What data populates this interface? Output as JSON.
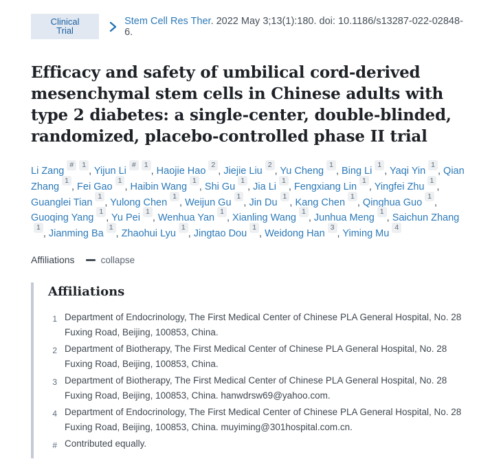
{
  "header": {
    "badge": "Clinical Trial",
    "journal": "Stem Cell Res Ther",
    "citation_rest": ". 2022 May 3;13(1):180. doi: 10.1186/s13287-022-02848-6."
  },
  "title": "Efficacy and safety of umbilical cord-derived mesenchymal stem cells in Chinese adults with type 2 diabetes: a single-center, double-blinded, randomized, placebo-controlled phase II trial",
  "authors": [
    {
      "name": "Li Zang",
      "sups": [
        "#",
        "1"
      ]
    },
    {
      "name": "Yijun Li",
      "sups": [
        "#",
        "1"
      ]
    },
    {
      "name": "Haojie Hao",
      "sups": [
        "2"
      ]
    },
    {
      "name": "Jiejie Liu",
      "sups": [
        "2"
      ]
    },
    {
      "name": "Yu Cheng",
      "sups": [
        "1"
      ]
    },
    {
      "name": "Bing Li",
      "sups": [
        "1"
      ]
    },
    {
      "name": "Yaqi Yin",
      "sups": [
        "1"
      ]
    },
    {
      "name": "Qian Zhang",
      "sups": [
        "1"
      ]
    },
    {
      "name": "Fei Gao",
      "sups": [
        "1"
      ]
    },
    {
      "name": "Haibin Wang",
      "sups": [
        "1"
      ]
    },
    {
      "name": "Shi Gu",
      "sups": [
        "1"
      ]
    },
    {
      "name": "Jia Li",
      "sups": [
        "1"
      ]
    },
    {
      "name": "Fengxiang Lin",
      "sups": [
        "1"
      ]
    },
    {
      "name": "Yingfei Zhu",
      "sups": [
        "1"
      ]
    },
    {
      "name": "Guanglei Tian",
      "sups": [
        "1"
      ]
    },
    {
      "name": "Yulong Chen",
      "sups": [
        "1"
      ]
    },
    {
      "name": "Weijun Gu",
      "sups": [
        "1"
      ]
    },
    {
      "name": "Jin Du",
      "sups": [
        "1"
      ]
    },
    {
      "name": "Kang Chen",
      "sups": [
        "1"
      ]
    },
    {
      "name": "Qinghua Guo",
      "sups": [
        "1"
      ]
    },
    {
      "name": "Guoqing Yang",
      "sups": [
        "1"
      ]
    },
    {
      "name": "Yu Pei",
      "sups": [
        "1"
      ]
    },
    {
      "name": "Wenhua Yan",
      "sups": [
        "1"
      ]
    },
    {
      "name": "Xianling Wang",
      "sups": [
        "1"
      ]
    },
    {
      "name": "Junhua Meng",
      "sups": [
        "1"
      ]
    },
    {
      "name": "Saichun Zhang",
      "sups": [
        "1"
      ]
    },
    {
      "name": "Jianming Ba",
      "sups": [
        "1"
      ]
    },
    {
      "name": "Zhaohui Lyu",
      "sups": [
        "1"
      ]
    },
    {
      "name": "Jingtao Dou",
      "sups": [
        "1"
      ]
    },
    {
      "name": "Weidong Han",
      "sups": [
        "3"
      ]
    },
    {
      "name": "Yiming Mu",
      "sups": [
        "4"
      ]
    }
  ],
  "affiliations_toggle": {
    "label": "Affiliations",
    "action": "collapse"
  },
  "affiliations": {
    "heading": "Affiliations",
    "items": [
      {
        "marker": "1",
        "text": "Department of Endocrinology, The First Medical Center of Chinese PLA General Hospital, No. 28 Fuxing Road, Beijing, 100853, China."
      },
      {
        "marker": "2",
        "text": "Department of Biotherapy, The First Medical Center of Chinese PLA General Hospital, No. 28 Fuxing Road, Beijing, 100853, China."
      },
      {
        "marker": "3",
        "text": "Department of Biotherapy, The First Medical Center of Chinese PLA General Hospital, No. 28 Fuxing Road, Beijing, 100853, China. hanwdrsw69@yahoo.com."
      },
      {
        "marker": "4",
        "text": "Department of Endocrinology, The First Medical Center of Chinese PLA General Hospital, No. 28 Fuxing Road, Beijing, 100853, China. muyiming@301hospital.com.cn."
      },
      {
        "marker": "#",
        "text": "Contributed equally."
      }
    ]
  },
  "colors": {
    "link_blue": "#2c79b7",
    "badge_bg": "#e1e8f2",
    "badge_text": "#1c5fa0",
    "panel_border": "#c4cbd4"
  }
}
